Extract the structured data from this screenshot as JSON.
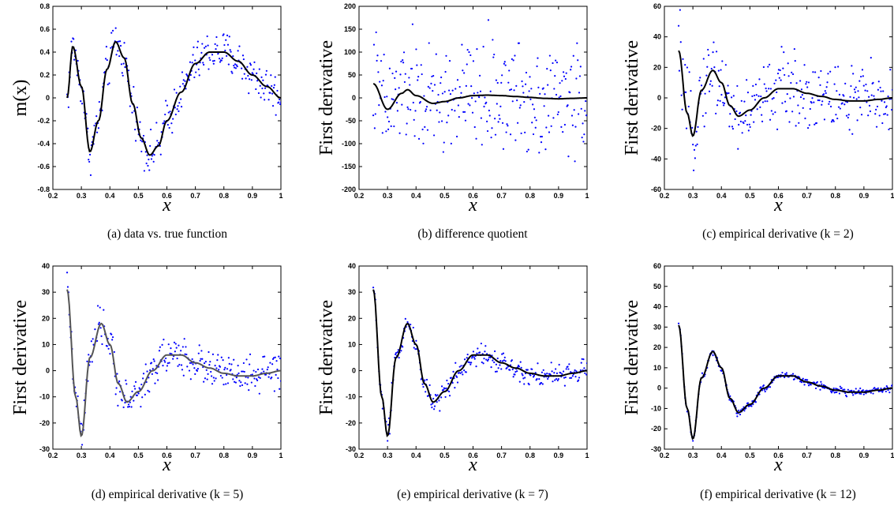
{
  "chart_data": [
    {
      "type": "scatter",
      "panel": "a",
      "caption": "(a) data vs. true function",
      "ylabel": "m(x)",
      "xlabel": "x",
      "xlim": [
        0.2,
        1
      ],
      "ylim": [
        -0.8,
        0.8
      ],
      "xticks": [
        "0.2",
        "0.3",
        "0.4",
        "0.5",
        "0.6",
        "0.7",
        "0.8",
        "0.9",
        "1"
      ],
      "yticks": [
        "-0.8",
        "-0.6",
        "-0.4",
        "-0.2",
        "0",
        "0.2",
        "0.4",
        "0.6",
        "0.8"
      ],
      "series": [
        {
          "kind": "points",
          "color": "#0000ff",
          "noise": 0.09,
          "x": [
            0.25,
            0.27,
            0.3,
            0.33,
            0.36,
            0.39,
            0.42,
            0.45,
            0.48,
            0.51,
            0.54,
            0.57,
            0.6,
            0.65,
            0.7,
            0.75,
            0.8,
            0.85,
            0.9,
            0.95,
            1.0
          ],
          "y": [
            0.0,
            0.45,
            0.1,
            -0.47,
            -0.2,
            0.25,
            0.49,
            0.35,
            -0.05,
            -0.35,
            -0.5,
            -0.42,
            -0.2,
            0.05,
            0.3,
            0.4,
            0.4,
            0.32,
            0.2,
            0.1,
            0.0
          ]
        },
        {
          "kind": "curve",
          "color": "#000000",
          "x": [
            0.25,
            0.27,
            0.3,
            0.33,
            0.36,
            0.39,
            0.42,
            0.45,
            0.48,
            0.51,
            0.54,
            0.57,
            0.6,
            0.65,
            0.7,
            0.75,
            0.8,
            0.85,
            0.9,
            0.95,
            1.0
          ],
          "y": [
            0.0,
            0.45,
            0.1,
            -0.47,
            -0.2,
            0.25,
            0.49,
            0.35,
            -0.05,
            -0.35,
            -0.5,
            -0.42,
            -0.2,
            0.05,
            0.3,
            0.4,
            0.4,
            0.32,
            0.2,
            0.1,
            0.0
          ]
        }
      ]
    },
    {
      "type": "scatter",
      "panel": "b",
      "caption": "(b) difference quotient",
      "ylabel": "First derivative",
      "xlabel": "x",
      "xlim": [
        0.2,
        1
      ],
      "ylim": [
        -200,
        200
      ],
      "xticks": [
        "0.2",
        "0.3",
        "0.4",
        "0.5",
        "0.6",
        "0.7",
        "0.8",
        "0.9",
        "1"
      ],
      "yticks": [
        "-200",
        "-150",
        "-100",
        "-50",
        "0",
        "50",
        "100",
        "150",
        "200"
      ],
      "series": [
        {
          "kind": "points",
          "color": "#0000ff",
          "noise": 60,
          "x": [
            0.25,
            0.3,
            0.35,
            0.37,
            0.4,
            0.46,
            0.5,
            0.55,
            0.6,
            0.65,
            0.7,
            0.75,
            0.8,
            0.85,
            0.9,
            0.95,
            1.0
          ],
          "y": [
            31,
            -25,
            10,
            18,
            5,
            -12,
            -8,
            0,
            5,
            6,
            5,
            3,
            1,
            -1,
            -2,
            -1,
            0
          ]
        },
        {
          "kind": "curve",
          "color": "#000000",
          "x": [
            0.25,
            0.3,
            0.35,
            0.37,
            0.4,
            0.46,
            0.5,
            0.55,
            0.6,
            0.65,
            0.7,
            0.75,
            0.8,
            0.85,
            0.9,
            0.95,
            1.0
          ],
          "y": [
            31,
            -25,
            10,
            18,
            5,
            -12,
            -8,
            0,
            5,
            6,
            5,
            3,
            1,
            -1,
            -2,
            -1,
            0
          ]
        }
      ]
    },
    {
      "type": "scatter",
      "panel": "c",
      "caption": "(c) empirical derivative (k = 2)",
      "ylabel": "First derivative",
      "xlabel": "x",
      "xlim": [
        0.2,
        1
      ],
      "ylim": [
        -60,
        60
      ],
      "xticks": [
        "0.2",
        "0.3",
        "0.4",
        "0.5",
        "0.6",
        "0.7",
        "0.8",
        "0.9",
        "1"
      ],
      "yticks": [
        "-60",
        "-40",
        "-20",
        "0",
        "20",
        "40",
        "60"
      ],
      "series": [
        {
          "kind": "points",
          "color": "#0000ff",
          "noise": 12,
          "x": [
            0.25,
            0.28,
            0.3,
            0.33,
            0.37,
            0.4,
            0.43,
            0.46,
            0.5,
            0.55,
            0.6,
            0.65,
            0.7,
            0.75,
            0.8,
            0.85,
            0.9,
            0.95,
            1.0
          ],
          "y": [
            31,
            -10,
            -25,
            5,
            18,
            10,
            -5,
            -12,
            -8,
            0,
            6,
            6,
            3,
            1,
            -1,
            -2,
            -2,
            -1,
            0
          ]
        },
        {
          "kind": "curve",
          "color": "#000000",
          "x": [
            0.25,
            0.28,
            0.3,
            0.33,
            0.37,
            0.4,
            0.43,
            0.46,
            0.5,
            0.55,
            0.6,
            0.65,
            0.7,
            0.75,
            0.8,
            0.85,
            0.9,
            0.95,
            1.0
          ],
          "y": [
            31,
            -10,
            -25,
            5,
            18,
            10,
            -5,
            -12,
            -8,
            0,
            6,
            6,
            3,
            1,
            -1,
            -2,
            -2,
            -1,
            0
          ]
        }
      ]
    },
    {
      "type": "scatter",
      "panel": "d",
      "caption": "(d) empirical derivative (k = 5)",
      "ylabel": "First derivative",
      "xlabel": "x",
      "xlim": [
        0.2,
        1
      ],
      "ylim": [
        -30,
        40
      ],
      "xticks": [
        "0.2",
        "0.3",
        "0.4",
        "0.5",
        "0.6",
        "0.7",
        "0.8",
        "0.9",
        "1"
      ],
      "yticks": [
        "-30",
        "-20",
        "-10",
        "0",
        "10",
        "20",
        "30",
        "40"
      ],
      "series": [
        {
          "kind": "points",
          "color": "#0000ff",
          "noise": 3.5,
          "x": [
            0.25,
            0.28,
            0.3,
            0.33,
            0.37,
            0.4,
            0.43,
            0.46,
            0.5,
            0.55,
            0.6,
            0.65,
            0.7,
            0.75,
            0.8,
            0.85,
            0.9,
            0.95,
            1.0
          ],
          "y": [
            31,
            -10,
            -25,
            5,
            18,
            10,
            -5,
            -12,
            -8,
            0,
            6,
            6,
            3,
            1,
            -1,
            -2,
            -2,
            -1,
            0
          ]
        },
        {
          "kind": "curve",
          "color": "#555555",
          "x": [
            0.25,
            0.28,
            0.3,
            0.33,
            0.37,
            0.4,
            0.43,
            0.46,
            0.5,
            0.55,
            0.6,
            0.65,
            0.7,
            0.75,
            0.8,
            0.85,
            0.9,
            0.95,
            1.0
          ],
          "y": [
            31,
            -10,
            -25,
            5,
            18,
            10,
            -5,
            -12,
            -8,
            0,
            6,
            6,
            3,
            1,
            -1,
            -2,
            -2,
            -1,
            0
          ]
        }
      ]
    },
    {
      "type": "scatter",
      "panel": "e",
      "caption": "(e) empirical derivative (k = 7)",
      "ylabel": "First derivative",
      "xlabel": "x",
      "xlim": [
        0.2,
        1
      ],
      "ylim": [
        -30,
        40
      ],
      "xticks": [
        "0.2",
        "0.3",
        "0.4",
        "0.5",
        "0.6",
        "0.7",
        "0.8",
        "0.9",
        "1"
      ],
      "yticks": [
        "-30",
        "-20",
        "-10",
        "0",
        "10",
        "20",
        "30",
        "40"
      ],
      "series": [
        {
          "kind": "points",
          "color": "#0000ff",
          "noise": 2.2,
          "x": [
            0.25,
            0.28,
            0.3,
            0.33,
            0.37,
            0.4,
            0.43,
            0.46,
            0.5,
            0.55,
            0.6,
            0.65,
            0.7,
            0.75,
            0.8,
            0.85,
            0.9,
            0.95,
            1.0
          ],
          "y": [
            31,
            -10,
            -25,
            5,
            18,
            10,
            -5,
            -12,
            -8,
            0,
            6,
            6,
            3,
            1,
            -1,
            -2,
            -2,
            -1,
            0
          ]
        },
        {
          "kind": "curve",
          "color": "#000000",
          "x": [
            0.25,
            0.28,
            0.3,
            0.33,
            0.37,
            0.4,
            0.43,
            0.46,
            0.5,
            0.55,
            0.6,
            0.65,
            0.7,
            0.75,
            0.8,
            0.85,
            0.9,
            0.95,
            1.0
          ],
          "y": [
            31,
            -10,
            -25,
            5,
            18,
            10,
            -5,
            -12,
            -8,
            0,
            6,
            6,
            3,
            1,
            -1,
            -2,
            -2,
            -1,
            0
          ]
        }
      ]
    },
    {
      "type": "scatter",
      "panel": "f",
      "caption": "(f) empirical derivative (k = 12)",
      "ylabel": "First derivative",
      "xlabel": "x",
      "xlim": [
        0.2,
        1
      ],
      "ylim": [
        -30,
        60
      ],
      "xticks": [
        "0.2",
        "0.3",
        "0.4",
        "0.5",
        "0.6",
        "0.7",
        "0.8",
        "0.9",
        "1"
      ],
      "yticks": [
        "-30",
        "-20",
        "-10",
        "0",
        "10",
        "20",
        "30",
        "40",
        "50",
        "60"
      ],
      "series": [
        {
          "kind": "points",
          "color": "#0000ff",
          "noise": 0.9,
          "x": [
            0.25,
            0.28,
            0.3,
            0.33,
            0.37,
            0.4,
            0.43,
            0.46,
            0.5,
            0.55,
            0.6,
            0.65,
            0.7,
            0.75,
            0.8,
            0.85,
            0.9,
            0.95,
            1.0
          ],
          "y": [
            31,
            -10,
            -25,
            5,
            18,
            10,
            -5,
            -12,
            -8,
            0,
            6,
            6,
            3,
            1,
            -1,
            -2,
            -2,
            -1,
            0
          ]
        },
        {
          "kind": "curve",
          "color": "#000000",
          "x": [
            0.25,
            0.28,
            0.3,
            0.33,
            0.37,
            0.4,
            0.43,
            0.46,
            0.5,
            0.55,
            0.6,
            0.65,
            0.7,
            0.75,
            0.8,
            0.85,
            0.9,
            0.95,
            1.0
          ],
          "y": [
            31,
            -10,
            -25,
            5,
            18,
            10,
            -5,
            -12,
            -8,
            0,
            6,
            6,
            3,
            1,
            -1,
            -2,
            -2,
            -1,
            0
          ]
        }
      ]
    }
  ]
}
